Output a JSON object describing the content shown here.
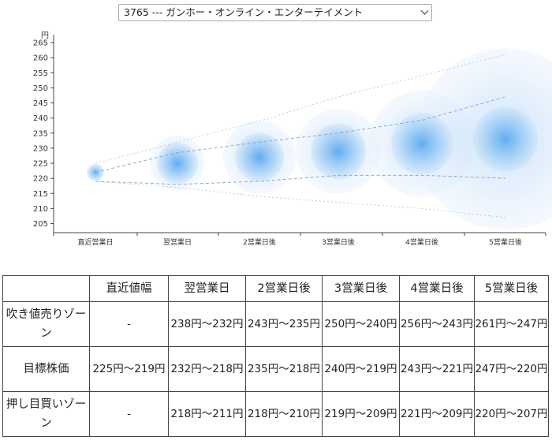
{
  "selector": {
    "value": "3765 --- ガンホー・オンライン・エンターテイメント"
  },
  "chart_data": {
    "type": "bubble",
    "ylabel": "円",
    "ylim": [
      202,
      265
    ],
    "yticks": [
      205,
      210,
      215,
      220,
      225,
      230,
      235,
      240,
      245,
      250,
      255,
      260,
      265
    ],
    "categories": [
      "直近営業日",
      "翌営業日",
      "2営業日後",
      "3営業日後",
      "4営業日後",
      "5営業日後"
    ],
    "center": [
      222,
      225,
      227,
      229,
      231.5,
      233
    ],
    "upper_band": [
      225,
      232,
      237,
      241,
      247,
      261
    ],
    "lower_band": [
      219,
      219,
      221,
      221,
      221,
      220
    ],
    "outer_trend": [
      225,
      232,
      239,
      247,
      254,
      261
    ],
    "inner_lower_trend": [
      219,
      218,
      219,
      221,
      221,
      220
    ],
    "outer_lower_trend": [
      219,
      217,
      214,
      212,
      210,
      207
    ],
    "colors": {
      "bubble_core": "#5aa9f0",
      "bubble_halo": "#dcebfb",
      "trend_line": "#7a9cc8",
      "axis": "#444444"
    }
  },
  "table": {
    "columns": [
      "",
      "直近値幅",
      "翌営業日",
      "2営業日後",
      "3営業日後",
      "4営業日後",
      "5営業日後"
    ],
    "rows": [
      {
        "label": "吹き値売りゾーン",
        "cells": [
          "-",
          "238円～232円",
          "243円～235円",
          "250円～240円",
          "256円～243円",
          "261円～247円"
        ]
      },
      {
        "label": "目標株価",
        "cells": [
          "225円～219円",
          "232円～218円",
          "235円～218円",
          "240円～219円",
          "243円～221円",
          "247円～220円"
        ]
      },
      {
        "label": "押し目買いゾーン",
        "cells": [
          "-",
          "218円～211円",
          "218円～210円",
          "219円～209円",
          "221円～209円",
          "220円～207円"
        ]
      }
    ]
  }
}
